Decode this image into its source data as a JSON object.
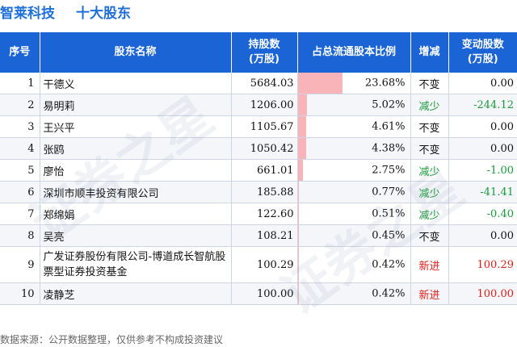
{
  "title": {
    "company": "智莱科技",
    "subtitle": "十大股东"
  },
  "headers": {
    "idx": "序号",
    "name": "股东名称",
    "shares": "持股数\n(万股)",
    "ratio": "占总流通股本比例",
    "trend": "增减",
    "change": "变动股数\n(万股)"
  },
  "rows": [
    {
      "idx": "1",
      "name": "干德义",
      "shares": "5684.03",
      "ratio": "23.68%",
      "ratio_value": 23.68,
      "trend": "不变",
      "trend_type": "same",
      "change": "0.00",
      "change_type": "same"
    },
    {
      "idx": "2",
      "name": "易明莉",
      "shares": "1206.00",
      "ratio": "5.02%",
      "ratio_value": 5.02,
      "trend": "减少",
      "trend_type": "down",
      "change": "-244.12",
      "change_type": "down"
    },
    {
      "idx": "3",
      "name": "王兴平",
      "shares": "1105.67",
      "ratio": "4.61%",
      "ratio_value": 4.61,
      "trend": "不变",
      "trend_type": "same",
      "change": "0.00",
      "change_type": "same"
    },
    {
      "idx": "4",
      "name": "张鸥",
      "shares": "1050.42",
      "ratio": "4.38%",
      "ratio_value": 4.38,
      "trend": "不变",
      "trend_type": "same",
      "change": "0.00",
      "change_type": "same"
    },
    {
      "idx": "5",
      "name": "廖怡",
      "shares": "661.01",
      "ratio": "2.75%",
      "ratio_value": 2.75,
      "trend": "减少",
      "trend_type": "down",
      "change": "-1.00",
      "change_type": "down"
    },
    {
      "idx": "6",
      "name": "深圳市顺丰投资有限公司",
      "shares": "185.88",
      "ratio": "0.77%",
      "ratio_value": 0.77,
      "trend": "减少",
      "trend_type": "down",
      "change": "-41.41",
      "change_type": "down"
    },
    {
      "idx": "7",
      "name": "郑绵娟",
      "shares": "122.60",
      "ratio": "0.51%",
      "ratio_value": 0.51,
      "trend": "减少",
      "trend_type": "down",
      "change": "-0.40",
      "change_type": "down"
    },
    {
      "idx": "8",
      "name": "吴亮",
      "shares": "108.21",
      "ratio": "0.45%",
      "ratio_value": 0.45,
      "trend": "不变",
      "trend_type": "same",
      "change": "0.00",
      "change_type": "same"
    },
    {
      "idx": "9",
      "name": "广发证券股份有限公司-博道成长智航股票型证券投资基金",
      "shares": "100.29",
      "ratio": "0.42%",
      "ratio_value": 0.42,
      "trend": "新进",
      "trend_type": "new",
      "change": "100.29",
      "change_type": "up"
    },
    {
      "idx": "10",
      "name": "凌静芝",
      "shares": "100.00",
      "ratio": "0.42%",
      "ratio_value": 0.42,
      "trend": "新进",
      "trend_type": "new",
      "change": "100.00",
      "change_type": "up"
    }
  ],
  "colors": {
    "header_bg": "#1b64d6",
    "title": "#1e6fd9",
    "ratio_bar": "#f8b4b8",
    "decrease": "#1a9b3a",
    "new": "#e0201b"
  },
  "watermark": [
    "证券之星",
    "证券之星"
  ],
  "footer": "数据来源：公开数据整理，仅供参考不构成投资建议"
}
